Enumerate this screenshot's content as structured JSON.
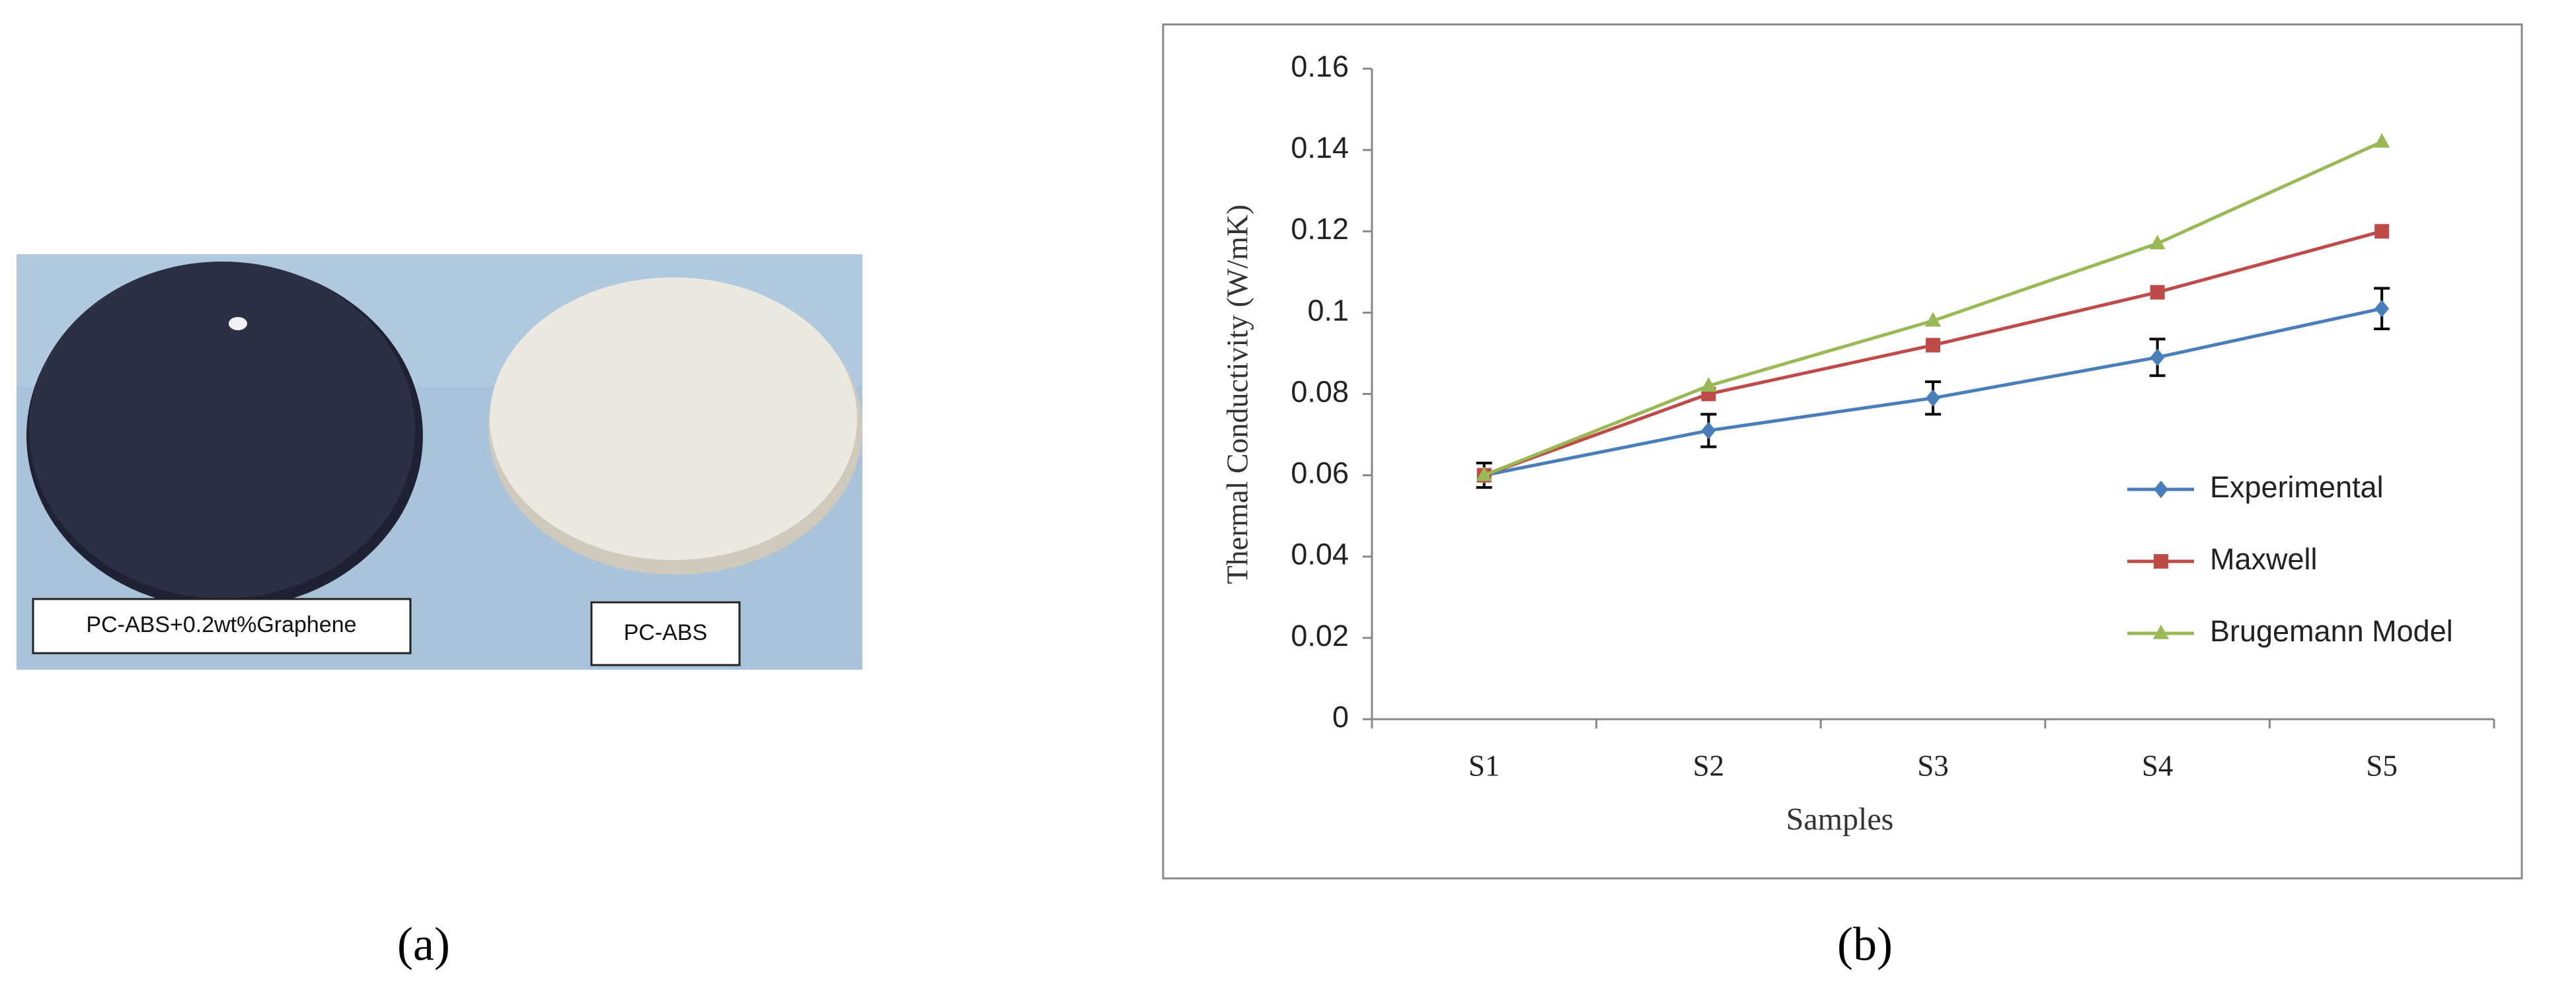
{
  "photo": {
    "labels": [
      "PC-ABS+0.2wt%Graphene",
      "PC-ABS"
    ]
  },
  "panel_labels": [
    "(a)",
    "(b)"
  ],
  "chart_data": {
    "type": "line",
    "x_label": "Samples",
    "y_label": "Thermal Conductivity (W/mK)",
    "categories": [
      "S1",
      "S2",
      "S3",
      "S4",
      "S5"
    ],
    "series": [
      {
        "name": "Experimental",
        "color": "#4a7ebb",
        "marker": "diamond",
        "values": [
          0.06,
          0.071,
          0.079,
          0.089,
          0.101
        ],
        "errors": [
          0.003,
          0.004,
          0.004,
          0.0045,
          0.005
        ]
      },
      {
        "name": "Maxwell",
        "color": "#be4b48",
        "marker": "square",
        "values": [
          0.06,
          0.08,
          0.092,
          0.105,
          0.12
        ]
      },
      {
        "name": "Brugemann Model",
        "color": "#98b954",
        "marker": "triangle",
        "values": [
          0.06,
          0.082,
          0.098,
          0.117,
          0.142
        ]
      }
    ],
    "ylim": [
      0,
      0.16
    ],
    "yticks": [
      0,
      0.02,
      0.04,
      0.06,
      0.08,
      0.1,
      0.12,
      0.14,
      0.16
    ],
    "legend": "right",
    "grid": false
  }
}
